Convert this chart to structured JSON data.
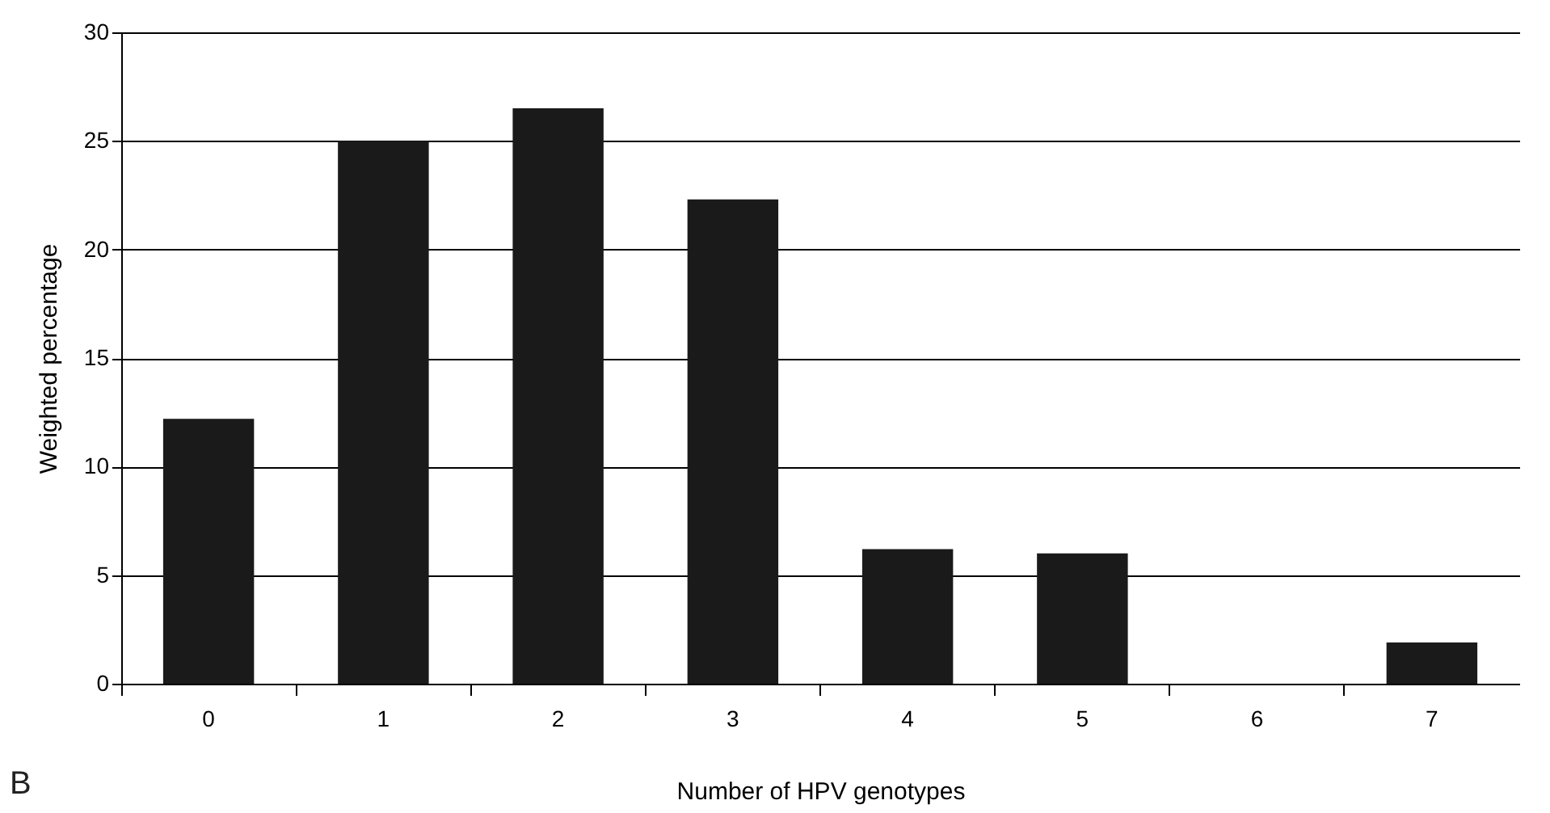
{
  "chart_data": {
    "type": "bar",
    "xlabel": "Number of HPV genotypes",
    "ylabel": "Weighted percentage",
    "categories": [
      "0",
      "1",
      "2",
      "3",
      "4",
      "5",
      "6",
      "7"
    ],
    "values": [
      12.2,
      25,
      26.5,
      22.3,
      6.2,
      6.0,
      0,
      1.9
    ],
    "color": "#1a1a1a",
    "ylim": [
      0,
      30
    ],
    "yticks": [
      0,
      5,
      10,
      15,
      20,
      25,
      30
    ],
    "grid": "y",
    "annotations": [
      "B"
    ]
  }
}
